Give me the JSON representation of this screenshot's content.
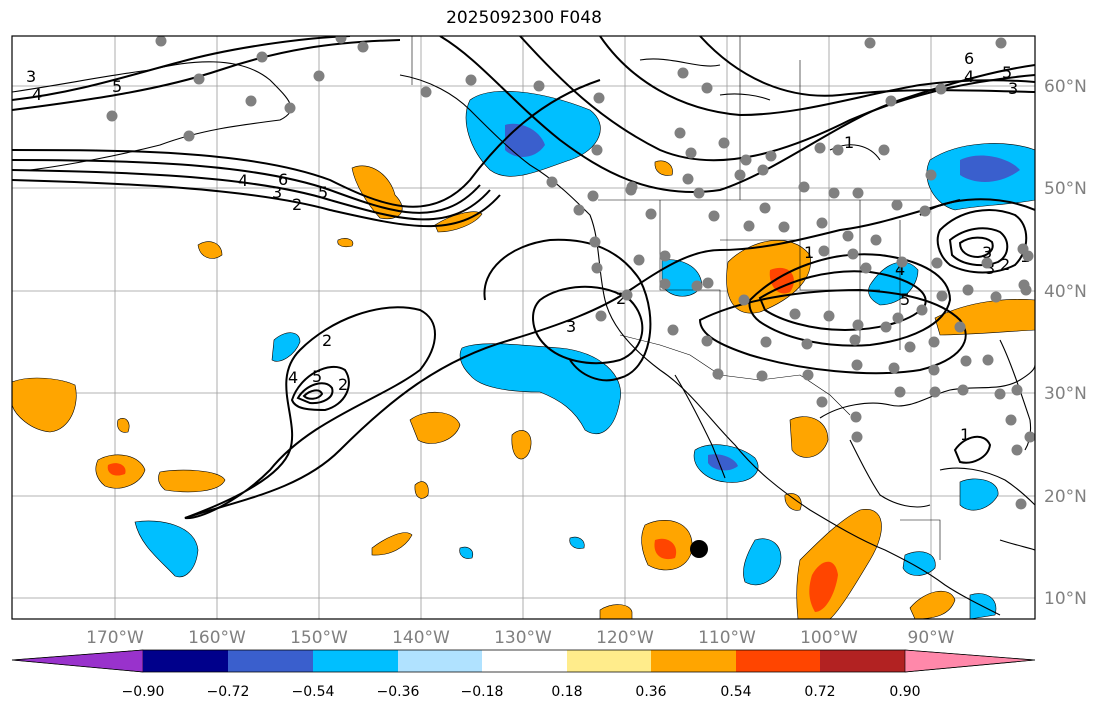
{
  "title": "2025092300 F048",
  "map": {
    "projection": "mercator",
    "lon_labels": [
      "170°W",
      "160°W",
      "150°W",
      "140°W",
      "130°W",
      "120°W",
      "110°W",
      "100°W",
      "90°W"
    ],
    "lat_labels": [
      "60°N",
      "50°N",
      "40°N",
      "30°N",
      "20°N",
      "10°N"
    ],
    "gridlines": true,
    "contour_labels": [
      "3",
      "4",
      "5",
      "6",
      "4",
      "3",
      "2",
      "5",
      "6",
      "4",
      "5",
      "3",
      "2",
      "1",
      "2",
      "3",
      "2",
      "4",
      "5",
      "3",
      "1",
      "1",
      "4",
      "5",
      "3",
      "2",
      "1"
    ],
    "station_marker": "black-dot"
  },
  "colorbar": {
    "ticks": [
      "−0.90",
      "−0.72",
      "−0.54",
      "−0.36",
      "−0.18",
      "0.18",
      "0.36",
      "0.54",
      "0.72",
      "0.90"
    ],
    "colors": [
      "#9932cc",
      "#00008b",
      "#3a5fcd",
      "#00bfff",
      "#b0e2ff",
      "#ffffff",
      "#ffec8b",
      "#ffa500",
      "#ff4500",
      "#b22222",
      "#ff88aa"
    ]
  }
}
